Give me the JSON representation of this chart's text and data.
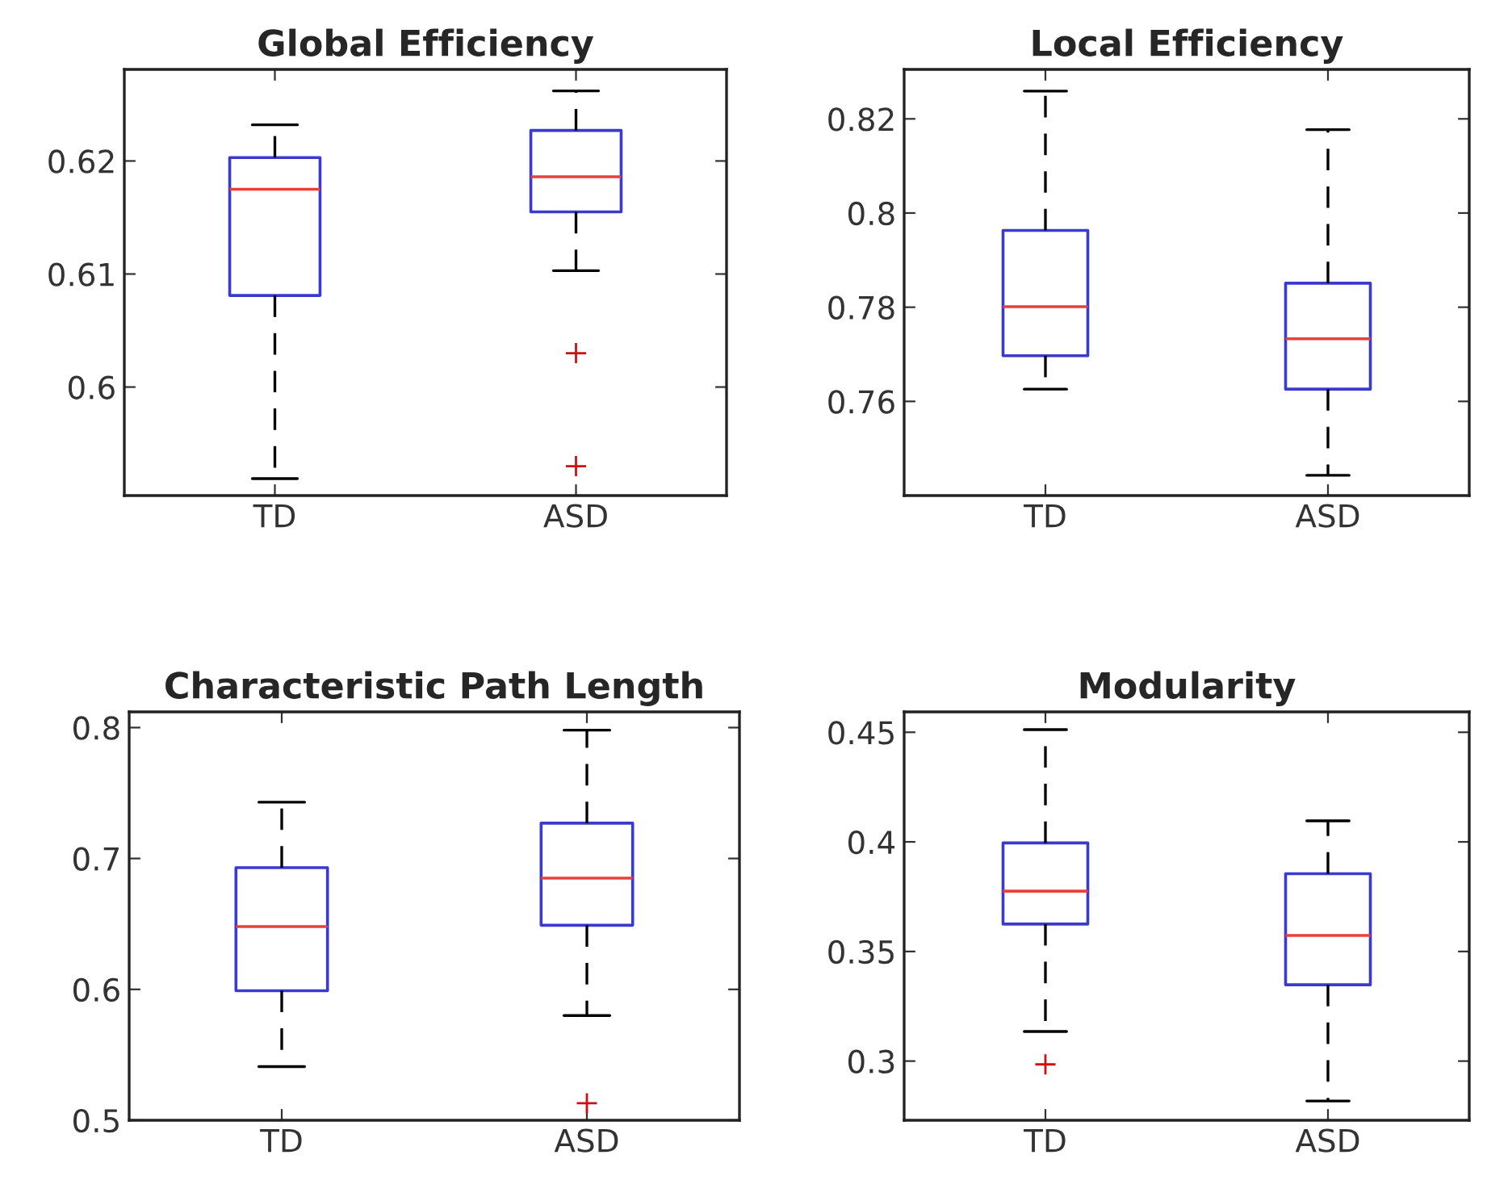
{
  "chart_data": [
    {
      "type": "box",
      "title": "Global Efficiency",
      "categories": [
        "TD",
        "ASD"
      ],
      "ylim": [
        0.5904,
        0.6281
      ],
      "yticks": [
        0.6,
        0.61,
        0.62
      ],
      "boxes": [
        {
          "low": 0.5919,
          "q1": 0.6081,
          "median": 0.6175,
          "q3": 0.6203,
          "high": 0.6232
        },
        {
          "low": 0.6103,
          "q1": 0.6155,
          "median": 0.6186,
          "q3": 0.6227,
          "high": 0.6262,
          "outliers": [
            0.603,
            0.593
          ]
        }
      ]
    },
    {
      "type": "box",
      "title": "Local Efficiency",
      "categories": [
        "TD",
        "ASD"
      ],
      "ylim": [
        0.74,
        0.8305
      ],
      "yticks": [
        0.76,
        0.78,
        0.8,
        0.82
      ],
      "boxes": [
        {
          "low": 0.7626,
          "q1": 0.7697,
          "median": 0.7801,
          "q3": 0.7963,
          "high": 0.8259
        },
        {
          "low": 0.7443,
          "q1": 0.7626,
          "median": 0.7733,
          "q3": 0.7851,
          "high": 0.8177
        }
      ]
    },
    {
      "type": "box",
      "title": "Characteristic Path Length",
      "categories": [
        "TD",
        "ASD"
      ],
      "ylim": [
        0.5,
        0.812
      ],
      "yticks": [
        0.5,
        0.6,
        0.7,
        0.8
      ],
      "boxes": [
        {
          "low": 0.541,
          "q1": 0.599,
          "median": 0.648,
          "q3": 0.693,
          "high": 0.743
        },
        {
          "low": 0.58,
          "q1": 0.649,
          "median": 0.685,
          "q3": 0.727,
          "high": 0.798,
          "outliers": [
            0.513
          ]
        }
      ]
    },
    {
      "type": "box",
      "title": "Modularity",
      "categories": [
        "TD",
        "ASD"
      ],
      "ylim": [
        0.273,
        0.4593
      ],
      "yticks": [
        0.3,
        0.35,
        0.4,
        0.45
      ],
      "boxes": [
        {
          "low": 0.3135,
          "q1": 0.3625,
          "median": 0.3775,
          "q3": 0.3995,
          "high": 0.4512,
          "outliers": [
            0.2985
          ]
        },
        {
          "low": 0.2818,
          "q1": 0.3348,
          "median": 0.3573,
          "q3": 0.3855,
          "high": 0.4096
        }
      ]
    }
  ]
}
